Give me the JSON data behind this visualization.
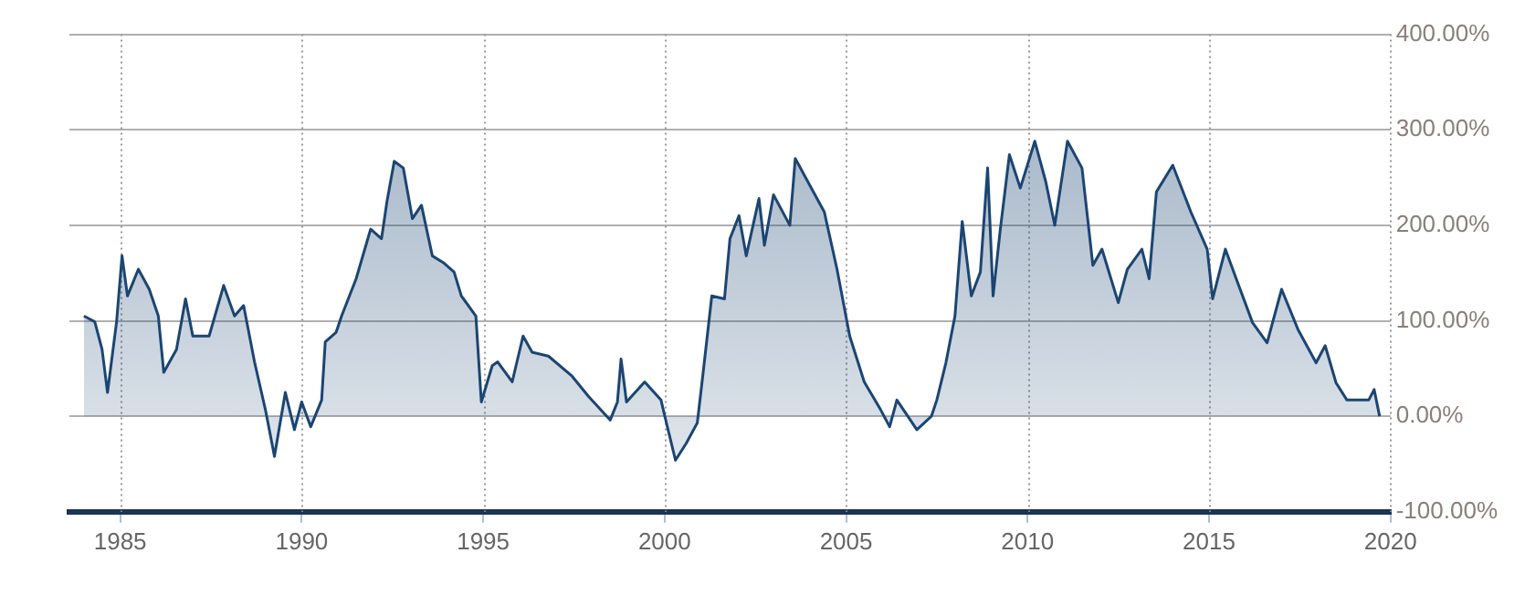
{
  "chart_data": {
    "type": "area",
    "xlim": [
      1983.6,
      2020
    ],
    "xticks": [
      1985,
      1990,
      1995,
      2000,
      2005,
      2010,
      2015,
      2020
    ],
    "ylim": [
      -100,
      400
    ],
    "yticks": [
      {
        "value": -100,
        "label": "-100.00%"
      },
      {
        "value": 0,
        "label": "0.00%"
      },
      {
        "value": 100,
        "label": "100.00%"
      },
      {
        "value": 200,
        "label": "200.00%"
      },
      {
        "value": 300,
        "label": "300.00%"
      },
      {
        "value": 400,
        "label": "400.00%"
      }
    ],
    "grid": true,
    "legend": false,
    "series": [
      {
        "color": "#1b4572",
        "x": [
          1984.0,
          1984.3,
          1984.5,
          1984.65,
          1984.9,
          1985.05,
          1985.2,
          1985.5,
          1985.8,
          1986.05,
          1986.2,
          1986.55,
          1986.8,
          1987.0,
          1987.45,
          1987.85,
          1988.15,
          1988.4,
          1988.7,
          1989.0,
          1989.25,
          1989.55,
          1989.8,
          1990.0,
          1990.25,
          1990.55,
          1990.65,
          1990.95,
          1991.1,
          1991.5,
          1991.9,
          1992.2,
          1992.35,
          1992.55,
          1992.8,
          1993.05,
          1993.3,
          1993.6,
          1993.9,
          1994.2,
          1994.4,
          1994.8,
          1994.95,
          1995.25,
          1995.4,
          1995.8,
          1996.1,
          1996.35,
          1996.8,
          1997.45,
          1997.9,
          1998.5,
          1998.7,
          1998.8,
          1998.95,
          1999.45,
          1999.9,
          2000.05,
          2000.3,
          2000.6,
          2000.9,
          2001.05,
          2001.3,
          2001.65,
          2001.8,
          2002.05,
          2002.25,
          2002.6,
          2002.75,
          2003.0,
          2003.45,
          2003.6,
          2004.0,
          2004.4,
          2004.75,
          2005.1,
          2005.5,
          2005.95,
          2006.2,
          2006.4,
          2006.95,
          2007.35,
          2007.5,
          2007.75,
          2008.0,
          2008.2,
          2008.45,
          2008.7,
          2008.9,
          2009.05,
          2009.25,
          2009.5,
          2009.8,
          2010.2,
          2010.5,
          2010.75,
          2011.1,
          2011.5,
          2011.8,
          2012.05,
          2012.5,
          2012.75,
          2013.15,
          2013.35,
          2013.55,
          2014.0,
          2014.5,
          2014.95,
          2015.1,
          2015.45,
          2015.75,
          2016.2,
          2016.6,
          2017.0,
          2017.45,
          2017.95,
          2018.2,
          2018.5,
          2018.8,
          2019.4,
          2019.55,
          2019.7
        ],
        "values": [
          105,
          99,
          70,
          25,
          99,
          168,
          126,
          154,
          133,
          105,
          46,
          70,
          123,
          84,
          84,
          137,
          105,
          116,
          57,
          7,
          -42,
          25,
          -14,
          15,
          -11,
          17,
          78,
          88,
          105,
          144,
          196,
          186,
          225,
          267,
          260,
          207,
          221,
          168,
          161,
          151,
          126,
          105,
          15,
          53,
          57,
          36,
          84,
          67,
          63,
          42,
          21,
          -4,
          15,
          60,
          15,
          36,
          17,
          -7,
          -46,
          -28,
          -7,
          42,
          126,
          123,
          186,
          210,
          168,
          228,
          179,
          232,
          200,
          270,
          242,
          214,
          154,
          84,
          36,
          7,
          -11,
          17,
          -14,
          0,
          17,
          56,
          105,
          204,
          126,
          151,
          260,
          126,
          196,
          274,
          239,
          288,
          246,
          200,
          288,
          260,
          158,
          175,
          119,
          154,
          175,
          144,
          235,
          263,
          214,
          175,
          123,
          175,
          144,
          98,
          77,
          133,
          91,
          56,
          74,
          35,
          17,
          17,
          28,
          0
        ]
      }
    ]
  }
}
